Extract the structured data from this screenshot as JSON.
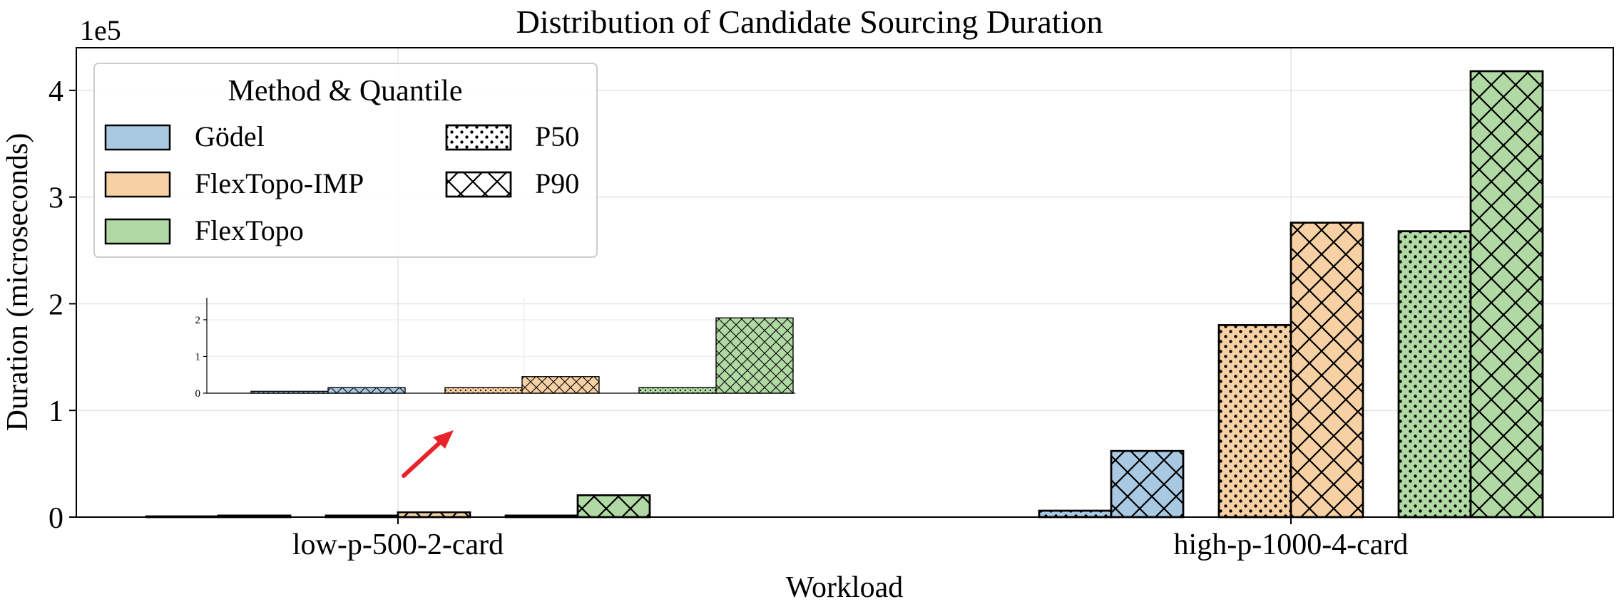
{
  "chart_data": {
    "type": "bar",
    "title": "Distribution of Candidate Sourcing Duration",
    "xlabel": "Workload",
    "ylabel": "Duration (microseconds)",
    "y_offset_label": "1e5",
    "y_scale": 100000,
    "ylim": [
      0,
      440000
    ],
    "yticks": [
      0,
      1,
      2,
      3,
      4
    ],
    "grid": true,
    "legend_title": "Method & Quantile",
    "legend_position": "top-left",
    "categories": [
      "low-p-500-2-card",
      "high-p-1000-4-card"
    ],
    "methods": [
      {
        "name": "Gödel",
        "color": "#a9c8e2"
      },
      {
        "name": "FlexTopo-IMP",
        "color": "#f7d1a3"
      },
      {
        "name": "FlexTopo",
        "color": "#b1d9a4"
      }
    ],
    "quantiles": [
      {
        "name": "P50",
        "hatch": "dots"
      },
      {
        "name": "P90",
        "hatch": "cross"
      }
    ],
    "series": [
      {
        "method": "Gödel",
        "quantile": "P50",
        "values": [
          500,
          6000
        ]
      },
      {
        "method": "Gödel",
        "quantile": "P90",
        "values": [
          1500,
          62000
        ]
      },
      {
        "method": "FlexTopo-IMP",
        "quantile": "P50",
        "values": [
          1500,
          180000
        ]
      },
      {
        "method": "FlexTopo-IMP",
        "quantile": "P90",
        "values": [
          4500,
          276000
        ]
      },
      {
        "method": "FlexTopo",
        "quantile": "P50",
        "values": [
          1500,
          268000
        ]
      },
      {
        "method": "FlexTopo",
        "quantile": "P90",
        "values": [
          20500,
          418000
        ]
      }
    ],
    "inset": {
      "category": "low-p-500-2-card",
      "ylim": [
        0,
        2.6
      ],
      "yticks": [
        0,
        1,
        2
      ],
      "scale": 10000
    }
  }
}
